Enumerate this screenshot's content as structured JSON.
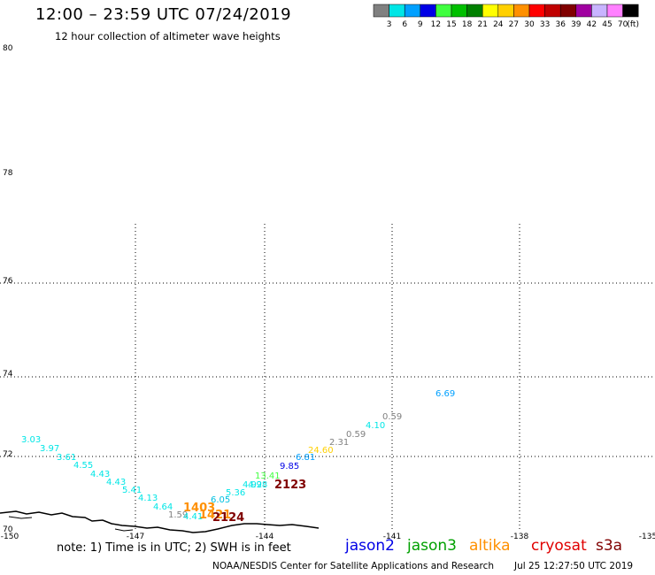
{
  "header": {
    "title": "12:00 – 23:59 UTC 07/24/2019",
    "subtitle": "12 hour collection of altimeter wave heights"
  },
  "legend": {
    "unit": "(ft)",
    "bins": [
      {
        "label": "3",
        "color": "#808080"
      },
      {
        "label": "6",
        "color": "#00e6e6"
      },
      {
        "label": "9",
        "color": "#00a0ff"
      },
      {
        "label": "12",
        "color": "#0000e6"
      },
      {
        "label": "15",
        "color": "#40ff40"
      },
      {
        "label": "18",
        "color": "#00c000"
      },
      {
        "label": "21",
        "color": "#008000"
      },
      {
        "label": "24",
        "color": "#ffff00"
      },
      {
        "label": "27",
        "color": "#ffd000"
      },
      {
        "label": "30",
        "color": "#ff9000"
      },
      {
        "label": "33",
        "color": "#ff0000"
      },
      {
        "label": "36",
        "color": "#c00000"
      },
      {
        "label": "39",
        "color": "#800000"
      },
      {
        "label": "42",
        "color": "#a000a0"
      },
      {
        "label": "45",
        "color": "#c8b4ff"
      },
      {
        "label": "70",
        "color": "#ff80ff"
      },
      {
        "label": "",
        "color": "#000000"
      }
    ]
  },
  "map": {
    "lat_labels": [
      "80",
      "78",
      "76",
      "74",
      "72",
      "70"
    ],
    "lon_labels": [
      "-150",
      "-147",
      "-144",
      "-141",
      "-138",
      "-135"
    ],
    "grid_lines_lat": [
      "76",
      "74",
      "72"
    ],
    "grid_lines_lon": [
      "-147",
      "-144",
      "-141",
      "-138"
    ]
  },
  "observations": [
    {
      "text": "3.03",
      "color": "#00e6e6"
    },
    {
      "text": "3.97",
      "color": "#00e6e6"
    },
    {
      "text": "3.61",
      "color": "#00e6e6"
    },
    {
      "text": "4.55",
      "color": "#00e6e6"
    },
    {
      "text": "4.43",
      "color": "#00e6e6"
    },
    {
      "text": "4.43",
      "color": "#00e6e6"
    },
    {
      "text": "5.41",
      "color": "#00e6e6"
    },
    {
      "text": "4.13",
      "color": "#00e6e6"
    },
    {
      "text": "4.64",
      "color": "#00e6e6"
    },
    {
      "text": "1.59",
      "color": "#808080"
    },
    {
      "text": "4.41",
      "color": "#00e6e6"
    },
    {
      "text": "6.05",
      "color": "#00c0e0"
    },
    {
      "text": "5.36",
      "color": "#00e6e6"
    },
    {
      "text": "4.92",
      "color": "#00e6e6"
    },
    {
      "text": "4.98",
      "color": "#00e6e6"
    },
    {
      "text": "13.41",
      "color": "#40ff40"
    },
    {
      "text": "9.85",
      "color": "#0000e6"
    },
    {
      "text": "6.81",
      "color": "#00a0ff"
    },
    {
      "text": "24.60",
      "color": "#ffd000"
    },
    {
      "text": "2.31",
      "color": "#808080"
    },
    {
      "text": "0.59",
      "color": "#808080"
    },
    {
      "text": "4.10",
      "color": "#00e6e6"
    },
    {
      "text": "0.59",
      "color": "#808080"
    },
    {
      "text": "6.69",
      "color": "#00a0ff"
    }
  ],
  "time_labels": [
    {
      "text": "1403",
      "color": "#ff9000"
    },
    {
      "text": "1421",
      "color": "#ff9000"
    },
    {
      "text": "2124",
      "color": "#800000"
    },
    {
      "text": "2123",
      "color": "#800000"
    }
  ],
  "footer": {
    "note": "note: 1) Time is in UTC; 2) SWH is in feet",
    "satellites": [
      {
        "name": "jason2",
        "color": "#0000e6"
      },
      {
        "name": "jason3",
        "color": "#00a000"
      },
      {
        "name": "altika",
        "color": "#ff9000"
      },
      {
        "name": "cryosat",
        "color": "#e00000"
      },
      {
        "name": "s3a",
        "color": "#800000"
      }
    ],
    "credit": "NOAA/NESDIS Center for Satellite Applications and Research",
    "timestamp": "Jul 25 12:27:50 UTC 2019"
  }
}
